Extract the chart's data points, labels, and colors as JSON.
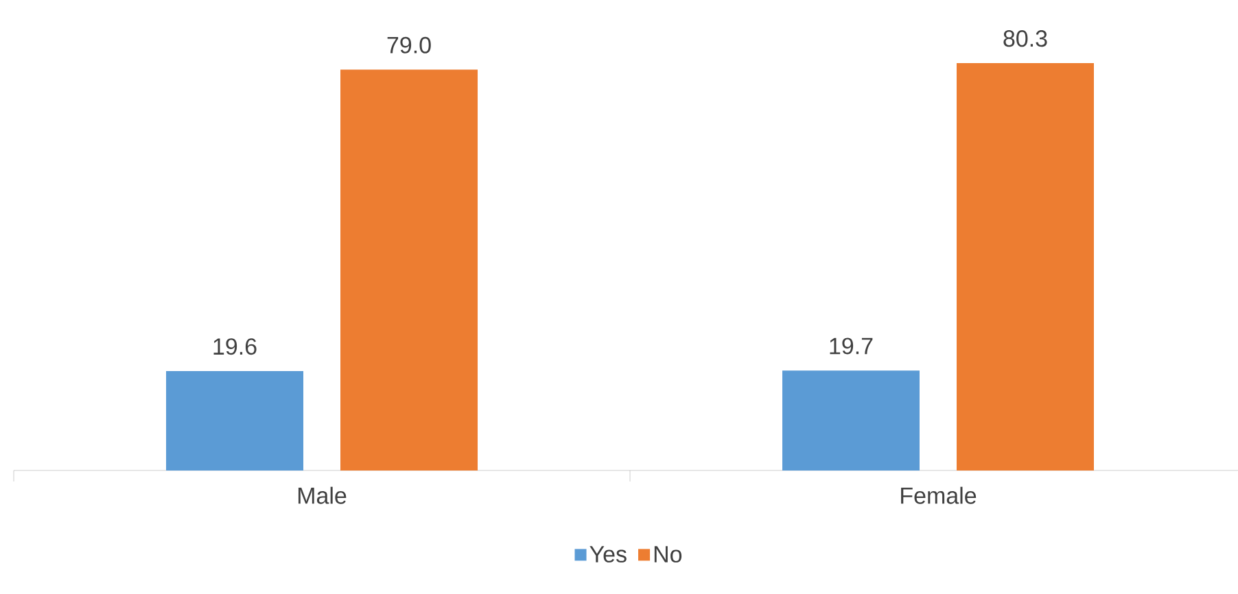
{
  "chart_data": {
    "type": "bar",
    "categories": [
      "Male",
      "Female"
    ],
    "series": [
      {
        "name": "Yes",
        "color": "#5b9bd5",
        "values": [
          19.6,
          19.7
        ],
        "value_labels": [
          "19.6",
          "19.7"
        ]
      },
      {
        "name": "No",
        "color": "#ed7d31",
        "values": [
          79.0,
          80.3
        ],
        "value_labels": [
          "79.0",
          "80.3"
        ]
      }
    ],
    "legend": "bottom"
  }
}
